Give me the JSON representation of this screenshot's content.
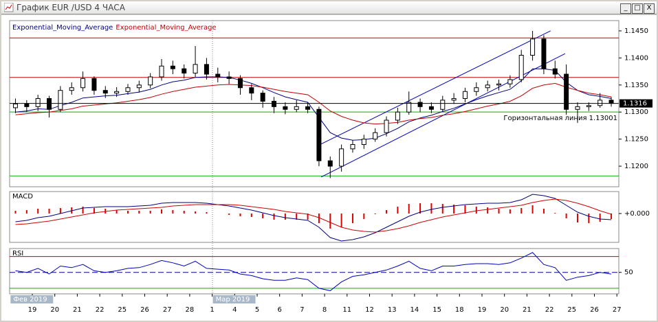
{
  "window": {
    "title": "График EUR /USD  4 ЧАСА"
  },
  "chart_data": [
    {
      "type": "candlestick",
      "ylim": [
        1.1162,
        1.1469
      ],
      "yticks": [
        {
          "value": 1.12,
          "label": "1.1200"
        },
        {
          "value": 1.125,
          "label": "1.1250"
        },
        {
          "value": 1.13,
          "label": "1.1300"
        },
        {
          "value": 1.135,
          "label": "1.1350"
        },
        {
          "value": 1.14,
          "label": "1.1400"
        },
        {
          "value": 1.145,
          "label": "1.1450"
        }
      ],
      "open": [
        1.1308,
        1.1315,
        1.131,
        1.1325,
        1.1305,
        1.134,
        1.1345,
        1.1362,
        1.134,
        1.1335,
        1.1338,
        1.1345,
        1.135,
        1.1365,
        1.1385,
        1.138,
        1.1372,
        1.1388,
        1.137,
        1.1365,
        1.1362,
        1.1345,
        1.1335,
        1.132,
        1.131,
        1.1305,
        1.131,
        1.1305,
        1.121,
        1.12,
        1.1232,
        1.124,
        1.125,
        1.1262,
        1.1285,
        1.13,
        1.1318,
        1.131,
        1.1305,
        1.1322,
        1.1325,
        1.1338,
        1.1345,
        1.135,
        1.1352,
        1.136,
        1.1405,
        1.1435,
        1.138,
        1.137,
        1.1305,
        1.131,
        1.1312,
        1.1322,
        null,
        null
      ],
      "high": [
        1.1325,
        1.1322,
        1.1332,
        1.133,
        1.1348,
        1.1355,
        1.1375,
        1.1366,
        1.1348,
        1.1346,
        1.1352,
        1.1358,
        1.1372,
        1.1398,
        1.1395,
        1.1388,
        1.1422,
        1.14,
        1.1382,
        1.1375,
        1.1368,
        1.1352,
        1.134,
        1.1328,
        1.1318,
        1.1322,
        1.1318,
        1.131,
        1.1218,
        1.124,
        1.1248,
        1.1258,
        1.127,
        1.1292,
        1.1308,
        1.1338,
        1.1325,
        1.1318,
        1.133,
        1.1335,
        1.1345,
        1.1355,
        1.1358,
        1.136,
        1.1368,
        1.1415,
        1.145,
        1.1442,
        1.1395,
        1.1388,
        1.1318,
        1.1318,
        1.1335,
        1.1328,
        null,
        null
      ],
      "low": [
        1.1298,
        1.13,
        1.1302,
        1.129,
        1.13,
        1.1332,
        1.1338,
        1.1332,
        1.1326,
        1.1328,
        1.1332,
        1.1336,
        1.1344,
        1.1358,
        1.137,
        1.1362,
        1.1365,
        1.136,
        1.1355,
        1.1352,
        1.1332,
        1.1322,
        1.1308,
        1.1298,
        1.1296,
        1.13,
        1.1298,
        1.12,
        1.1178,
        1.119,
        1.1225,
        1.1232,
        1.1245,
        1.1255,
        1.1278,
        1.1295,
        1.13,
        1.1298,
        1.13,
        1.1315,
        1.1318,
        1.133,
        1.1338,
        1.134,
        1.1345,
        1.1355,
        1.1395,
        1.137,
        1.1362,
        1.1295,
        1.128,
        1.1302,
        1.1308,
        1.131,
        null,
        null
      ],
      "close": [
        1.1315,
        1.131,
        1.1325,
        1.1305,
        1.134,
        1.1345,
        1.1362,
        1.134,
        1.1335,
        1.1338,
        1.1345,
        1.135,
        1.1365,
        1.1385,
        1.138,
        1.1372,
        1.1388,
        1.137,
        1.1365,
        1.1362,
        1.1345,
        1.1335,
        1.132,
        1.131,
        1.1305,
        1.131,
        1.1305,
        1.121,
        1.12,
        1.1232,
        1.124,
        1.125,
        1.1262,
        1.1285,
        1.13,
        1.1318,
        1.131,
        1.1305,
        1.1322,
        1.1325,
        1.1338,
        1.1345,
        1.135,
        1.1352,
        1.136,
        1.1405,
        1.1435,
        1.138,
        1.137,
        1.1305,
        1.131,
        1.1312,
        1.1322,
        1.1316,
        null,
        null
      ],
      "series": [
        {
          "name": "Exponential_Moving_Average",
          "color": "#000080",
          "values": [
            1.13,
            1.1302,
            1.1306,
            1.1305,
            1.1312,
            1.1318,
            1.1326,
            1.1328,
            1.133,
            1.1331,
            1.1334,
            1.1337,
            1.1342,
            1.135,
            1.1356,
            1.1359,
            1.1364,
            1.1365,
            1.1365,
            1.1364,
            1.1359,
            1.1353,
            1.1345,
            1.1336,
            1.1328,
            1.1323,
            1.1318,
            1.129,
            1.1262,
            1.1252,
            1.1248,
            1.1249,
            1.1252,
            1.126,
            1.127,
            1.1282,
            1.1289,
            1.1294,
            1.1301,
            1.1307,
            1.1315,
            1.1323,
            1.133,
            1.1336,
            1.1342,
            1.1358,
            1.138,
            1.138,
            1.1377,
            1.1355,
            1.134,
            1.1332,
            1.1329,
            1.1325,
            null,
            null
          ]
        },
        {
          "name": "Exponential_Moving_Average",
          "color": "#c00000",
          "values": [
            1.1295,
            1.1297,
            1.1299,
            1.13,
            1.1303,
            1.1306,
            1.1311,
            1.1313,
            1.1315,
            1.1317,
            1.132,
            1.1323,
            1.1327,
            1.1333,
            1.1338,
            1.1342,
            1.1346,
            1.1348,
            1.135,
            1.1351,
            1.135,
            1.1349,
            1.1346,
            1.1342,
            1.1338,
            1.1335,
            1.1332,
            1.1318,
            1.1302,
            1.1292,
            1.1285,
            1.128,
            1.1278,
            1.1279,
            1.1281,
            1.1285,
            1.1288,
            1.129,
            1.1294,
            1.1297,
            1.1301,
            1.1306,
            1.1311,
            1.1315,
            1.132,
            1.133,
            1.1344,
            1.135,
            1.1353,
            1.1346,
            1.134,
            1.1335,
            1.1332,
            1.1328,
            null,
            null
          ]
        }
      ],
      "hlines": [
        {
          "value": 1.1437,
          "color": "#c00000"
        },
        {
          "value": 1.1364,
          "color": "#c00000"
        },
        {
          "value": 1.13001,
          "color": "#00b000"
        },
        {
          "value": 1.1182,
          "color": "#00b000"
        }
      ],
      "annotation": "Горизонтальная линия 1.13001",
      "trend_lines": [
        {
          "x": [
            27.2,
            47.6
          ],
          "y": [
            1.1241,
            1.145
          ],
          "color": "#0000c0"
        },
        {
          "x": [
            27.2,
            48.9
          ],
          "y": [
            1.118,
            1.1408
          ],
          "color": "#0000c0"
        }
      ],
      "current_price": 1.1316
    },
    {
      "type": "macd",
      "title": "MACD",
      "ylim": [
        -0.0042,
        0.0032
      ],
      "yticks": [
        {
          "value": 0,
          "label": "+0.000"
        }
      ],
      "histogram": {
        "color": "#e00000",
        "values": [
          0.0004,
          0.0005,
          0.0007,
          0.0007,
          0.0008,
          0.0009,
          0.001,
          0.0008,
          0.0007,
          0.0005,
          0.0004,
          0.0004,
          0.0004,
          0.0006,
          0.0005,
          0.0004,
          0.0003,
          0.0002,
          0.0,
          -0.0002,
          -0.0004,
          -0.0005,
          -0.0007,
          -0.0009,
          -0.0009,
          -0.0009,
          -0.0009,
          -0.0014,
          -0.0022,
          -0.002,
          -0.0014,
          -0.0008,
          -0.0001,
          0.0005,
          0.001,
          0.0014,
          0.0015,
          0.0015,
          0.0014,
          0.0013,
          0.0012,
          0.001,
          0.0009,
          0.0007,
          0.0006,
          0.0008,
          0.0012,
          0.0007,
          0.0001,
          -0.0007,
          -0.0013,
          -0.0014,
          -0.0012,
          -0.0008,
          null,
          null
        ]
      },
      "lines": [
        {
          "color": "#000080",
          "values": [
            -0.0012,
            -0.001,
            -0.0006,
            -0.0004,
            0.0,
            0.0004,
            0.0008,
            0.0009,
            0.001,
            0.001,
            0.001,
            0.0011,
            0.0012,
            0.0015,
            0.0016,
            0.0016,
            0.0016,
            0.0015,
            0.0013,
            0.0011,
            0.0008,
            0.0005,
            0.0001,
            -0.0003,
            -0.0006,
            -0.0008,
            -0.001,
            -0.002,
            -0.0035,
            -0.004,
            -0.0038,
            -0.0034,
            -0.0028,
            -0.002,
            -0.0012,
            -0.0004,
            0.0002,
            0.0006,
            0.0009,
            0.0011,
            0.0013,
            0.0014,
            0.0015,
            0.0015,
            0.0016,
            0.002,
            0.0028,
            0.0026,
            0.0022,
            0.0012,
            0.0002,
            -0.0004,
            -0.0008,
            -0.0009,
            null,
            null
          ]
        },
        {
          "color": "#d00000",
          "values": [
            -0.0016,
            -0.0015,
            -0.0013,
            -0.0011,
            -0.0008,
            -0.0005,
            -0.0002,
            0.0001,
            0.0003,
            0.0005,
            0.0006,
            0.0007,
            0.0008,
            0.0009,
            0.0011,
            0.0012,
            0.0013,
            0.0013,
            0.0013,
            0.0013,
            0.0012,
            0.001,
            0.0008,
            0.0006,
            0.0003,
            0.0001,
            -0.0001,
            -0.0006,
            -0.0013,
            -0.002,
            -0.0024,
            -0.0026,
            -0.0027,
            -0.0025,
            -0.0022,
            -0.0018,
            -0.0013,
            -0.0009,
            -0.0005,
            -0.0002,
            0.0001,
            0.0004,
            0.0006,
            0.0008,
            0.001,
            0.0012,
            0.0016,
            0.0019,
            0.0021,
            0.0019,
            0.0015,
            0.001,
            0.0004,
            -0.0001,
            null,
            null
          ]
        }
      ]
    },
    {
      "type": "line",
      "title": "RSI",
      "ylim": [
        23,
        80
      ],
      "yticks": [
        50
      ],
      "levels": [
        {
          "value": 70,
          "color": "#c00000"
        },
        {
          "value": 30,
          "color": "#00b000"
        }
      ],
      "color": "#0000c0",
      "values": [
        52,
        50,
        55,
        48,
        58,
        56,
        60,
        52,
        50,
        52,
        55,
        56,
        60,
        65,
        62,
        58,
        64,
        55,
        54,
        53,
        48,
        46,
        42,
        40,
        40,
        43,
        41,
        30,
        27,
        38,
        45,
        47,
        50,
        53,
        58,
        64,
        55,
        52,
        58,
        58,
        60,
        61,
        61,
        60,
        62,
        68,
        75,
        60,
        56,
        40,
        44,
        46,
        50,
        48,
        null,
        null
      ],
      "categories": [
        null,
        null,
        "19",
        null,
        "20",
        null,
        "21",
        null,
        "22",
        null,
        "25",
        null,
        "26",
        null,
        "27",
        null,
        "28",
        null,
        "1",
        null,
        "4",
        null,
        "5",
        null,
        "6",
        null,
        "7",
        null,
        "8",
        null,
        "11",
        null,
        "12",
        null,
        "13",
        null,
        "14",
        null,
        "15",
        null,
        "18",
        null,
        "19",
        null,
        "20",
        null,
        "21",
        null,
        "22",
        null,
        "25",
        null,
        "26",
        null,
        "27",
        null
      ],
      "month_labels": [
        "Фев 2019",
        "Мар 2019"
      ]
    }
  ]
}
